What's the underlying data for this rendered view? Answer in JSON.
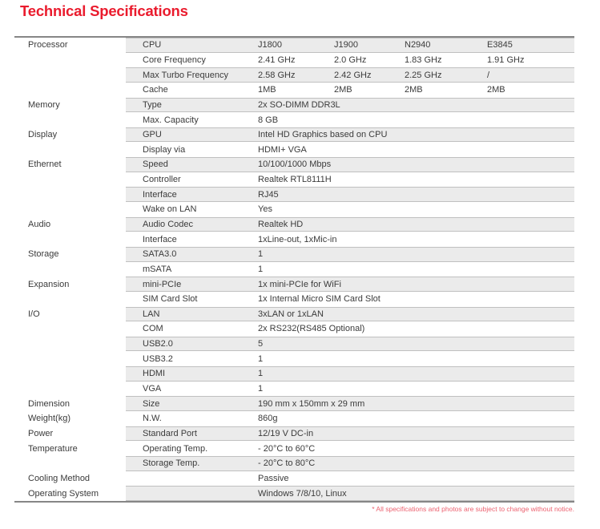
{
  "page": {
    "title": "Technical Specifications",
    "footnote": "* All specifications and photos are subject to change without notice."
  },
  "colors": {
    "title_red": "#ea1b2d",
    "footnote_red": "#ec6270",
    "stripe_gray": "#ebebeb",
    "stripe_border": "#c0c0c0",
    "table_border": "#868686",
    "text": "#3b3b3b"
  },
  "table": {
    "rows": [
      {
        "category": "Processor",
        "attribute": "CPU",
        "values": [
          "J1800",
          "J1900",
          "N2940",
          "E3845"
        ],
        "striped": true
      },
      {
        "category": "",
        "attribute": "Core Frequency",
        "values": [
          "2.41 GHz",
          "2.0 GHz",
          "1.83 GHz",
          "1.91 GHz"
        ],
        "striped": false
      },
      {
        "category": "",
        "attribute": "Max Turbo Frequency",
        "values": [
          "2.58 GHz",
          "2.42 GHz",
          "2.25 GHz",
          "/"
        ],
        "striped": true
      },
      {
        "category": "",
        "attribute": "Cache",
        "values": [
          "1MB",
          "2MB",
          "2MB",
          "2MB"
        ],
        "striped": false
      },
      {
        "category": "Memory",
        "attribute": "Type",
        "values": [
          "2x SO-DIMM DDR3L"
        ],
        "striped": true
      },
      {
        "category": "",
        "attribute": "Max. Capacity",
        "values": [
          "8 GB"
        ],
        "striped": false
      },
      {
        "category": "Display",
        "attribute": "GPU",
        "values": [
          "Intel HD Graphics based on CPU"
        ],
        "striped": true
      },
      {
        "category": "",
        "attribute": "Display via",
        "values": [
          "HDMI+ VGA"
        ],
        "striped": false
      },
      {
        "category": "Ethernet",
        "attribute": "Speed",
        "values": [
          "10/100/1000 Mbps"
        ],
        "striped": true
      },
      {
        "category": "",
        "attribute": "Controller",
        "values": [
          "Realtek RTL8111H"
        ],
        "striped": false
      },
      {
        "category": "",
        "attribute": "Interface",
        "values": [
          "RJ45"
        ],
        "striped": true
      },
      {
        "category": "",
        "attribute": "Wake on LAN",
        "values": [
          "Yes"
        ],
        "striped": false
      },
      {
        "category": "Audio",
        "attribute": "Audio Codec",
        "values": [
          "Realtek HD"
        ],
        "striped": true
      },
      {
        "category": "",
        "attribute": "Interface",
        "values": [
          "1xLine-out, 1xMic-in"
        ],
        "striped": false
      },
      {
        "category": "Storage",
        "attribute": "SATA3.0",
        "values": [
          "1"
        ],
        "striped": true
      },
      {
        "category": "",
        "attribute": "mSATA",
        "values": [
          "1"
        ],
        "striped": false
      },
      {
        "category": "Expansion",
        "attribute": "mini-PCIe",
        "values": [
          "1x mini-PCIe for WiFi"
        ],
        "striped": true
      },
      {
        "category": "",
        "attribute": "SIM Card Slot",
        "values": [
          "1x Internal Micro SIM Card Slot"
        ],
        "striped": false
      },
      {
        "category": "I/O",
        "attribute": "LAN",
        "values": [
          "3xLAN or 1xLAN"
        ],
        "striped": true
      },
      {
        "category": "",
        "attribute": "COM",
        "values": [
          "2x RS232(RS485 Optional)"
        ],
        "striped": false
      },
      {
        "category": "",
        "attribute": "USB2.0",
        "values": [
          "5"
        ],
        "striped": true
      },
      {
        "category": "",
        "attribute": "USB3.2",
        "values": [
          "1"
        ],
        "striped": false
      },
      {
        "category": "",
        "attribute": "HDMI",
        "values": [
          "1"
        ],
        "striped": true
      },
      {
        "category": "",
        "attribute": "VGA",
        "values": [
          "1"
        ],
        "striped": false
      },
      {
        "category": "Dimension",
        "attribute": "Size",
        "values": [
          "190 mm x 150mm x 29 mm"
        ],
        "striped": true
      },
      {
        "category": "Weight(kg)",
        "attribute": "N.W.",
        "values": [
          "860g"
        ],
        "striped": false
      },
      {
        "category": "Power",
        "attribute": "Standard Port",
        "values": [
          "12/19 V DC-in"
        ],
        "striped": true
      },
      {
        "category": "Temperature",
        "attribute": "Operating Temp.",
        "values": [
          "- 20°C to 60°C"
        ],
        "striped": false
      },
      {
        "category": "",
        "attribute": "Storage Temp.",
        "values": [
          "- 20°C to 80°C"
        ],
        "striped": true
      },
      {
        "category": "Cooling Method",
        "attribute": "",
        "values": [
          "Passive"
        ],
        "striped": false
      },
      {
        "category": "Operating System",
        "attribute": "",
        "values": [
          "Windows 7/8/10, Linux"
        ],
        "striped": true
      }
    ]
  }
}
